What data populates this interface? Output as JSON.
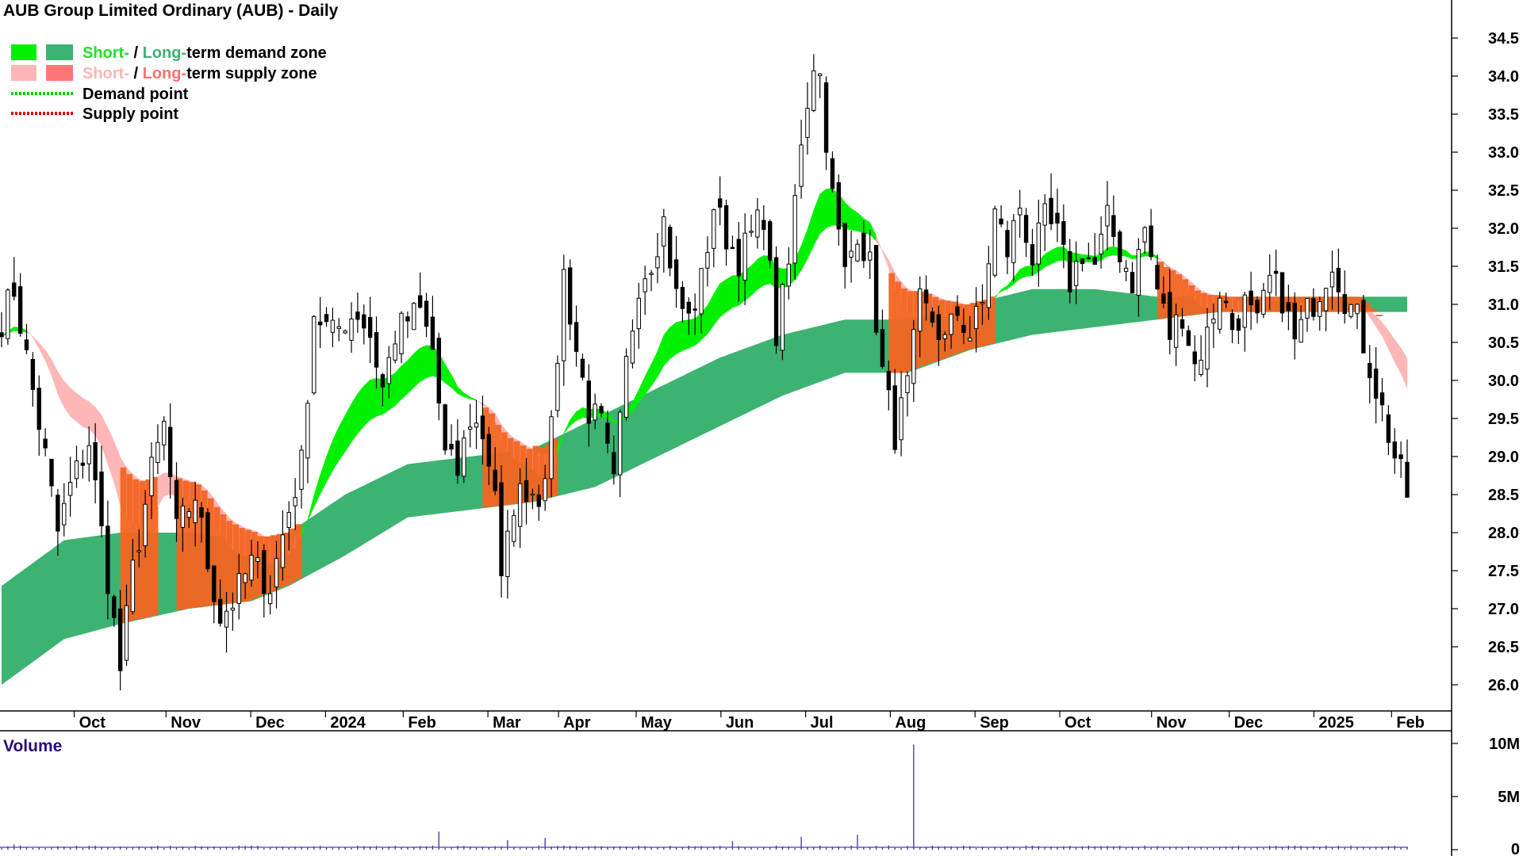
{
  "chart_data": {
    "type": "candlestick",
    "title": "AUB Group Limited Ordinary (AUB) - Daily",
    "legend": {
      "items": [
        {
          "parts": [
            {
              "text": "Short-",
              "color": "#22e02a"
            },
            {
              "text": " / ",
              "color": "#000000"
            },
            {
              "text": "Long-",
              "color": "#3cb371"
            },
            {
              "text": "term demand zone",
              "color": "#000000"
            }
          ],
          "swatches": [
            "#00f000",
            "#3cb371"
          ]
        },
        {
          "parts": [
            {
              "text": "Short-",
              "color": "#ffb6b6"
            },
            {
              "text": " / ",
              "color": "#000000"
            },
            {
              "text": "Long-",
              "color": "#ff7070"
            },
            {
              "text": "term supply zone",
              "color": "#000000"
            }
          ],
          "swatches": [
            "#ffb6b6",
            "#ff7878"
          ]
        },
        {
          "parts": [
            {
              "text": "Demand point",
              "color": "#000000"
            }
          ],
          "line_color": "#00d000"
        },
        {
          "parts": [
            {
              "text": "Supply point",
              "color": "#000000"
            }
          ],
          "line_color": "#e00000"
        }
      ]
    },
    "price_axis": {
      "ticks": [
        "34.5",
        "34.0",
        "33.5",
        "33.0",
        "32.5",
        "32.0",
        "31.5",
        "31.0",
        "30.5",
        "30.0",
        "29.5",
        "29.0",
        "28.5",
        "28.0",
        "27.5",
        "27.0",
        "26.5",
        "26.0"
      ],
      "range": [
        25.7,
        34.7
      ]
    },
    "x_axis": {
      "labels": [
        "Oct",
        "Nov",
        "Dec",
        "2024",
        "Feb",
        "Mar",
        "Apr",
        "May",
        "Jun",
        "Jul",
        "Aug",
        "Sep",
        "Oct",
        "Nov",
        "Dec",
        "2025",
        "Feb"
      ],
      "label_positions": [
        2.2,
        15.2,
        27.2,
        37.8,
        48.8,
        60.8,
        70.8,
        81.8,
        93.8,
        105.8,
        117.8,
        129.8,
        141.8,
        154.8,
        165.8,
        177.8,
        188.8
      ],
      "total_days": 200
    },
    "price_anchors": [
      [
        0,
        30.8
      ],
      [
        2,
        31.2
      ],
      [
        4,
        30.3
      ],
      [
        7,
        29.0
      ],
      [
        9,
        28.0
      ],
      [
        11,
        28.6
      ],
      [
        14,
        29.2
      ],
      [
        16,
        28.0
      ],
      [
        19,
        26.2
      ],
      [
        21,
        27.5
      ],
      [
        24,
        28.8
      ],
      [
        26,
        29.4
      ],
      [
        28,
        28.0
      ],
      [
        31,
        28.5
      ],
      [
        33,
        27.6
      ],
      [
        35,
        26.9
      ],
      [
        37,
        27.1
      ],
      [
        40,
        27.6
      ],
      [
        43,
        27.3
      ],
      [
        46,
        28.3
      ],
      [
        48,
        28.9
      ],
      [
        50,
        30.9
      ],
      [
        53,
        30.6
      ],
      [
        55,
        30.8
      ],
      [
        57,
        30.9
      ],
      [
        59,
        30.6
      ],
      [
        61,
        29.9
      ],
      [
        63,
        30.6
      ],
      [
        65,
        30.8
      ],
      [
        67,
        30.9
      ],
      [
        69,
        30.4
      ],
      [
        71,
        29.0
      ],
      [
        73,
        28.8
      ],
      [
        75,
        29.5
      ],
      [
        77,
        29.3
      ],
      [
        79,
        28.6
      ],
      [
        80,
        27.3
      ],
      [
        82,
        28.4
      ],
      [
        84,
        28.6
      ],
      [
        86,
        28.5
      ],
      [
        88,
        29.3
      ],
      [
        90,
        31.4
      ],
      [
        92,
        30.4
      ],
      [
        94,
        29.6
      ],
      [
        96,
        29.4
      ],
      [
        98,
        28.6
      ],
      [
        100,
        30.2
      ],
      [
        102,
        31.3
      ],
      [
        104,
        31.6
      ],
      [
        106,
        32.1
      ],
      [
        108,
        31.1
      ],
      [
        110,
        30.8
      ],
      [
        112,
        31.3
      ],
      [
        114,
        32.3
      ],
      [
        116,
        31.9
      ],
      [
        118,
        31.6
      ],
      [
        120,
        31.9
      ],
      [
        122,
        32.2
      ],
      [
        124,
        30.6
      ],
      [
        126,
        31.5
      ],
      [
        128,
        33.2
      ],
      [
        130,
        34.2
      ],
      [
        131,
        34.0
      ],
      [
        133,
        32.4
      ],
      [
        135,
        31.4
      ],
      [
        137,
        32.0
      ],
      [
        139,
        31.5
      ],
      [
        141,
        30.1
      ],
      [
        143,
        29.3
      ],
      [
        145,
        29.9
      ],
      [
        147,
        31.0
      ],
      [
        149,
        30.8
      ],
      [
        151,
        30.5
      ],
      [
        153,
        30.9
      ],
      [
        155,
        30.6
      ],
      [
        157,
        31.0
      ],
      [
        159,
        32.2
      ],
      [
        161,
        31.7
      ],
      [
        163,
        32.3
      ],
      [
        165,
        31.6
      ],
      [
        167,
        32.1
      ],
      [
        169,
        31.9
      ],
      [
        171,
        31.3
      ],
      [
        173,
        31.7
      ],
      [
        175,
        31.5
      ],
      [
        177,
        32.1
      ],
      [
        179,
        31.7
      ],
      [
        181,
        31.3
      ],
      [
        183,
        32.0
      ],
      [
        185,
        31.2
      ],
      [
        187,
        30.6
      ],
      [
        189,
        30.9
      ],
      [
        191,
        30.2
      ],
      [
        193,
        30.6
      ],
      [
        195,
        31.2
      ],
      [
        197,
        30.7
      ],
      [
        199,
        31.0
      ],
      [
        201,
        30.7
      ],
      [
        203,
        31.3
      ],
      [
        205,
        31.1
      ],
      [
        207,
        30.5
      ],
      [
        209,
        30.9
      ],
      [
        211,
        31.2
      ],
      [
        213,
        31.6
      ],
      [
        215,
        31.1
      ],
      [
        217,
        30.8
      ],
      [
        219,
        30.2
      ],
      [
        221,
        29.6
      ],
      [
        223,
        29.0
      ],
      [
        225,
        28.5
      ]
    ],
    "long_term_band": [
      [
        0,
        26.0,
        27.3
      ],
      [
        10,
        26.6,
        27.9
      ],
      [
        19,
        26.8,
        28.0
      ],
      [
        30,
        27.0,
        28.0
      ],
      [
        40,
        27.1,
        27.9
      ],
      [
        46,
        27.3,
        28.0
      ],
      [
        55,
        27.7,
        28.5
      ],
      [
        65,
        28.2,
        28.9
      ],
      [
        75,
        28.3,
        29.0
      ],
      [
        85,
        28.4,
        29.1
      ],
      [
        95,
        28.6,
        29.5
      ],
      [
        105,
        29.0,
        29.9
      ],
      [
        115,
        29.4,
        30.3
      ],
      [
        125,
        29.8,
        30.6
      ],
      [
        135,
        30.1,
        30.8
      ],
      [
        145,
        30.1,
        30.8
      ],
      [
        155,
        30.4,
        31.0
      ],
      [
        165,
        30.6,
        31.2
      ],
      [
        175,
        30.7,
        31.2
      ],
      [
        185,
        30.8,
        31.1
      ],
      [
        195,
        30.9,
        31.1
      ],
      [
        200,
        30.9,
        31.1
      ]
    ],
    "volume": {
      "title": "Volume",
      "ticks": [
        "10M",
        "5M",
        "0"
      ],
      "max": 10000000,
      "spikes": [
        [
          2,
          500000
        ],
        [
          70,
          1700000
        ],
        [
          81,
          900000
        ],
        [
          87,
          1100000
        ],
        [
          117,
          800000
        ],
        [
          128,
          1200000
        ],
        [
          137,
          1400000
        ],
        [
          146,
          9900000
        ]
      ]
    }
  }
}
